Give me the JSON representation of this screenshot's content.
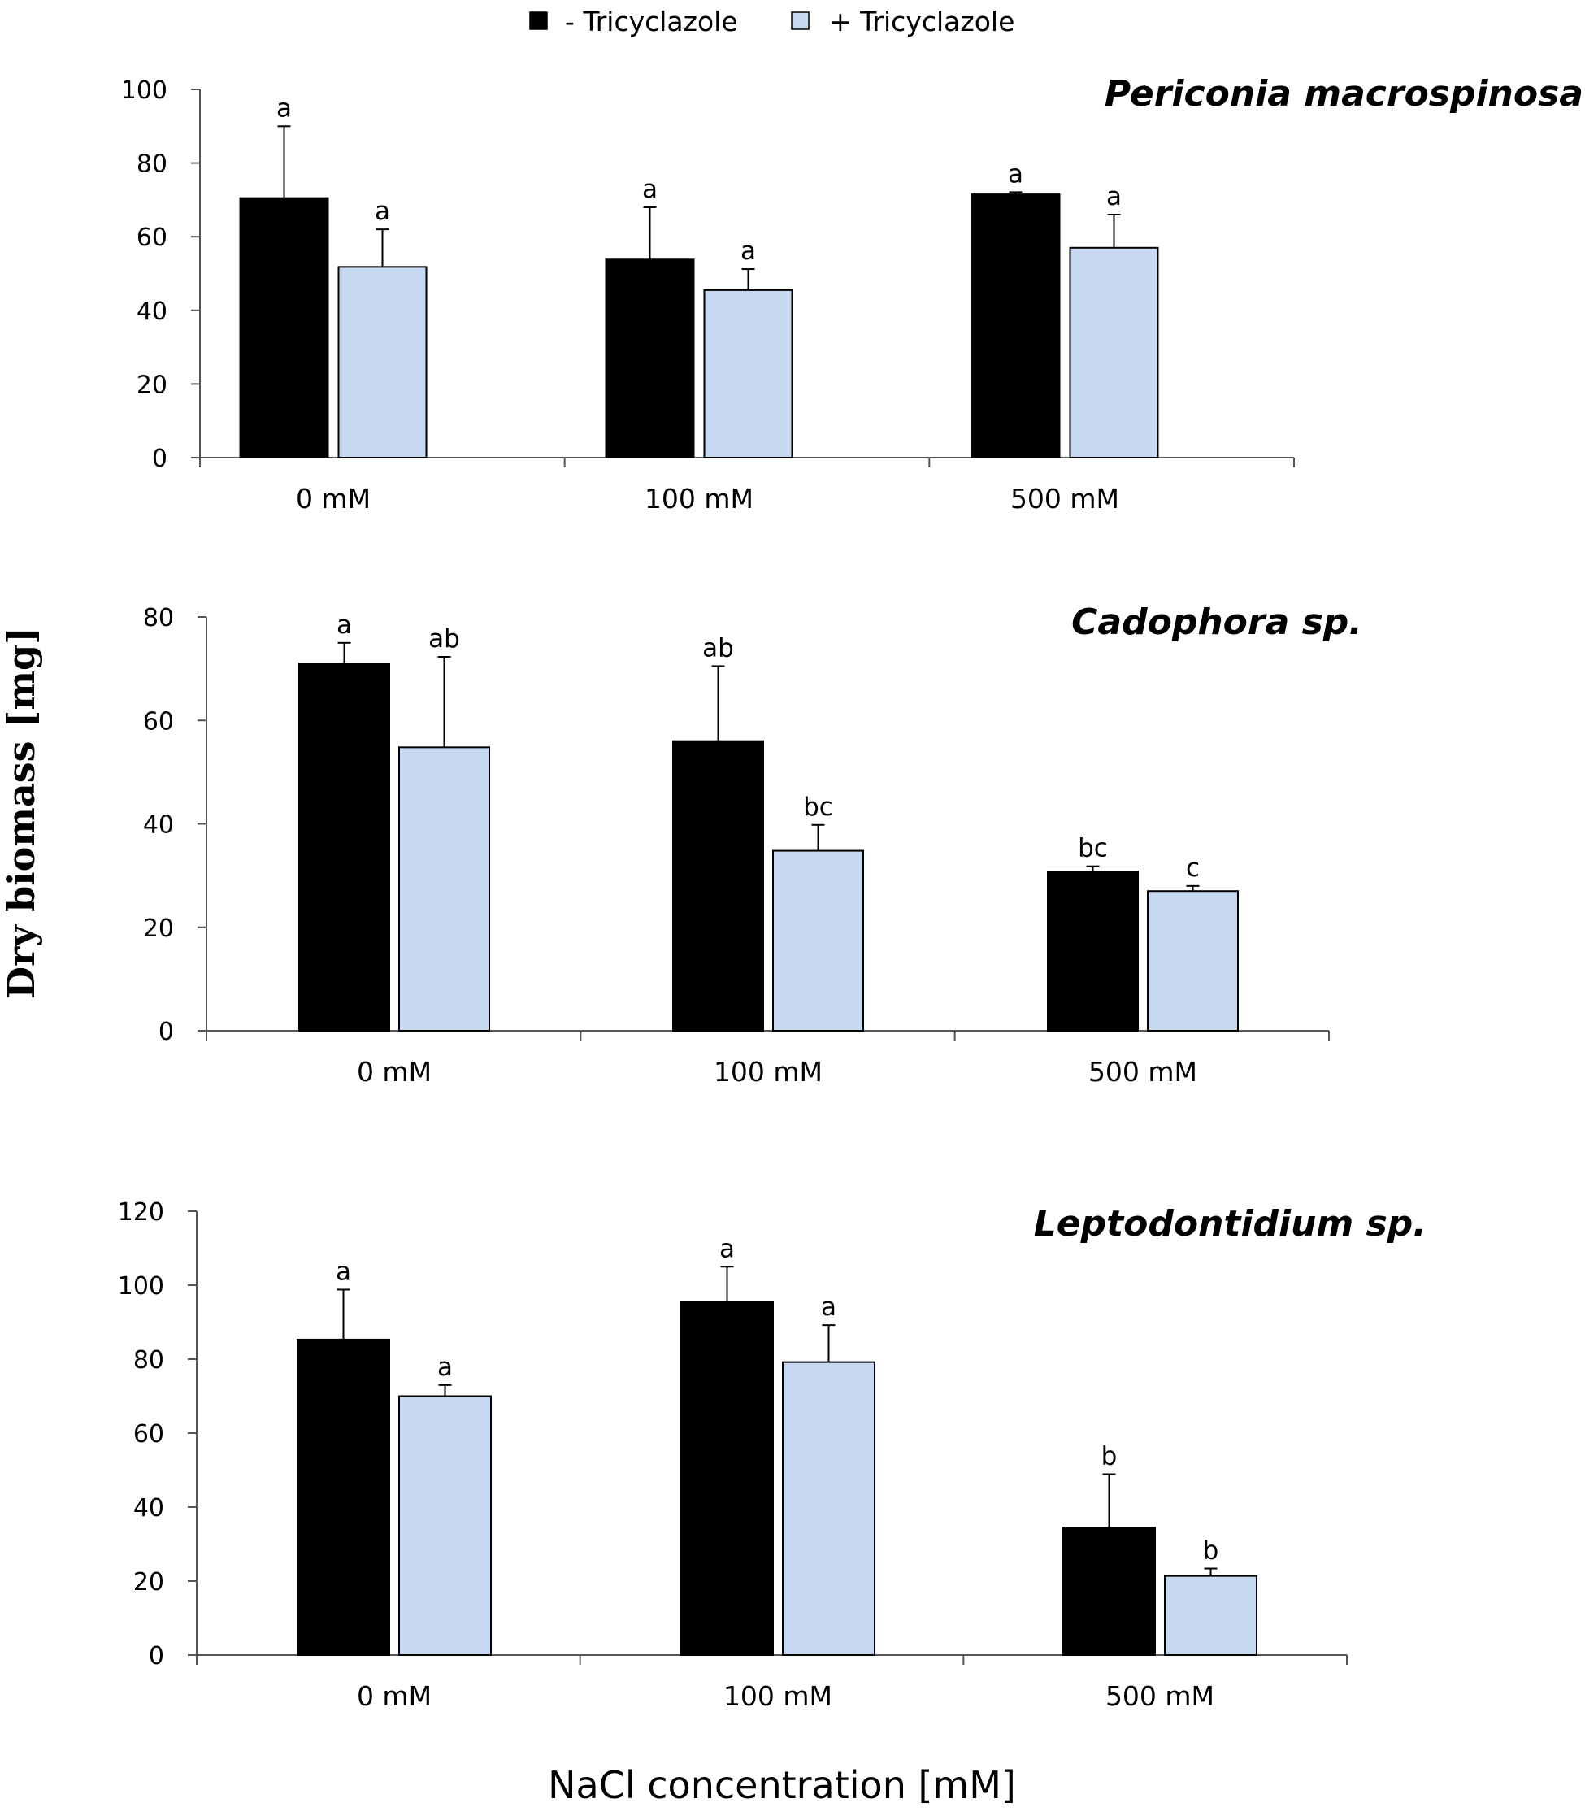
{
  "legend": {
    "items": [
      {
        "label": "- Tricyclazole",
        "color": "#000000"
      },
      {
        "label": "+ Tricyclazole",
        "color": "#c7d9f0"
      }
    ]
  },
  "y_axis_title": "Dry biomass [mg]",
  "x_axis_title": "NaCl concentration [mM]",
  "chart_data": [
    {
      "type": "bar",
      "title": "Periconia macrospinosa",
      "categories": [
        "0 mM",
        "100 mM",
        "500 mM"
      ],
      "ylim": [
        0,
        100
      ],
      "yticks": [
        0,
        20,
        40,
        60,
        80,
        100
      ],
      "series": [
        {
          "name": "- Tricyclazole",
          "color": "#000000",
          "values": [
            70.5,
            53.8,
            71.5
          ],
          "errors": [
            19.5,
            14.2,
            0.6
          ],
          "labels": [
            "a",
            "a",
            "a"
          ]
        },
        {
          "name": "+ Tricyclazole",
          "color": "#c7d9f0",
          "values": [
            51.8,
            45.5,
            57.0
          ],
          "errors": [
            10.2,
            5.7,
            9.0
          ],
          "labels": [
            "a",
            "a",
            "a"
          ]
        }
      ]
    },
    {
      "type": "bar",
      "title": "Cadophora sp.",
      "categories": [
        "0 mM",
        "100 mM",
        "500 mM"
      ],
      "ylim": [
        0,
        80
      ],
      "yticks": [
        0,
        20,
        40,
        60,
        80
      ],
      "series": [
        {
          "name": "- Tricyclazole",
          "color": "#000000",
          "values": [
            71.0,
            56.0,
            30.8
          ],
          "errors": [
            4.0,
            14.5,
            1.0
          ],
          "labels": [
            "a",
            "ab",
            "bc"
          ]
        },
        {
          "name": "+ Tricyclazole",
          "color": "#c7d9f0",
          "values": [
            54.8,
            34.8,
            27.0
          ],
          "errors": [
            17.5,
            5.0,
            1.0
          ],
          "labels": [
            "ab",
            "bc",
            "c"
          ]
        }
      ]
    },
    {
      "type": "bar",
      "title": "Leptodontidium sp.",
      "categories": [
        "0 mM",
        "100 mM",
        "500 mM"
      ],
      "ylim": [
        0,
        120
      ],
      "yticks": [
        0,
        20,
        40,
        60,
        80,
        100,
        120
      ],
      "series": [
        {
          "name": "- Tricyclazole",
          "color": "#000000",
          "values": [
            85.3,
            95.6,
            34.4
          ],
          "errors": [
            13.5,
            9.4,
            14.5
          ],
          "labels": [
            "a",
            "a",
            "b"
          ]
        },
        {
          "name": "+ Tricyclazole",
          "color": "#c7d9f0",
          "values": [
            70.0,
            79.2,
            21.4
          ],
          "errors": [
            3.0,
            10.0,
            2.0
          ],
          "labels": [
            "a",
            "a",
            "b"
          ]
        }
      ]
    }
  ]
}
